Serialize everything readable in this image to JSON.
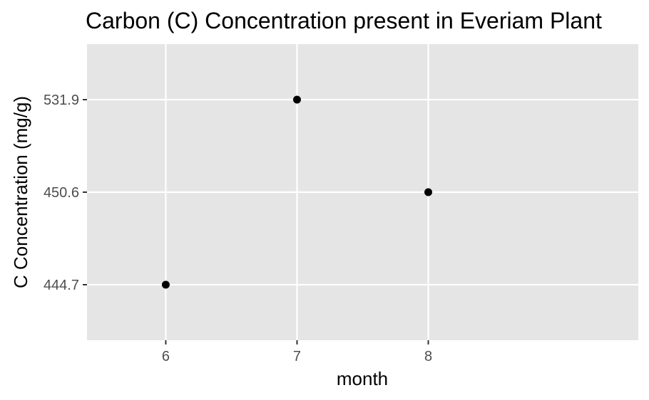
{
  "chart_data": {
    "type": "scatter",
    "title": "Carbon (C) Concentration present in Everiam Plant",
    "xlabel": "month",
    "ylabel": "C Concentration (mg/g)",
    "x_categories": [
      "6",
      "7",
      "8"
    ],
    "y_categories": [
      "444.7",
      "450.6",
      "531.9"
    ],
    "points": [
      {
        "x": "6",
        "y": "444.7"
      },
      {
        "x": "7",
        "y": "531.9"
      },
      {
        "x": "8",
        "y": "450.6"
      }
    ],
    "grid": true,
    "legend": "none",
    "colors": {
      "panel": "#E5E5E5",
      "grid": "#FFFFFF",
      "point": "#000000",
      "tick": "#4D4D4D",
      "text": "#000000"
    }
  }
}
